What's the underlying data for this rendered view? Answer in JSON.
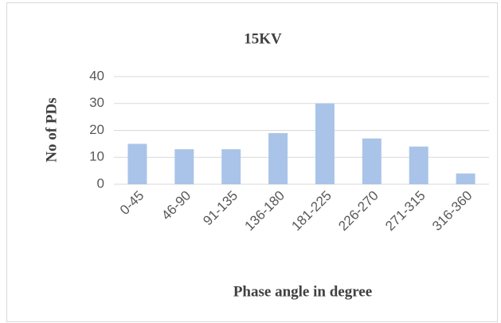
{
  "chart_data": {
    "type": "bar",
    "title": "15KV",
    "y_label": "No of PDs",
    "x_label": "Phase angle in degree",
    "categories": [
      "0-45",
      "46-90",
      "91-135",
      "136-180",
      "181-225",
      "226-270",
      "271-315",
      "316-360"
    ],
    "values": [
      15,
      13,
      13,
      19,
      30,
      17,
      14,
      4
    ],
    "color": "#a9c4e8",
    "ylim": [
      0,
      40
    ],
    "yticks": [
      0,
      10,
      20,
      30,
      40
    ],
    "grid": true
  }
}
